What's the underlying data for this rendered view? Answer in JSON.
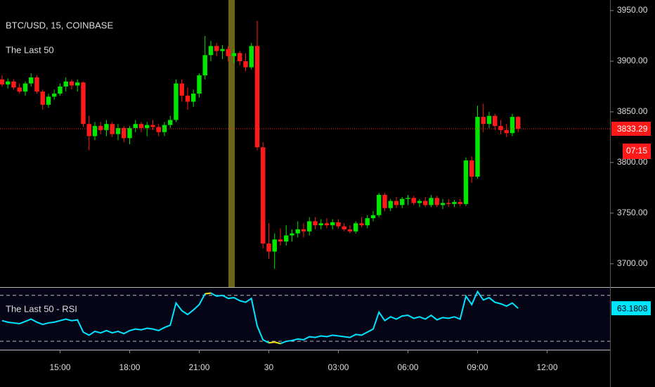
{
  "chart_data": {
    "type": "candlestick",
    "title": "BTC/USD, 15, COINBASE",
    "subtitle": "The Last 50",
    "countdown": "07:15",
    "up_color": "#00e600",
    "down_color": "#ff1a1a",
    "xlim": [
      -0.36,
      104.85
    ],
    "xticks": [
      {
        "value": 10,
        "label": "15:00"
      },
      {
        "value": 22,
        "label": "18:00"
      },
      {
        "value": 34,
        "label": "21:00"
      },
      {
        "value": 46,
        "label": "30"
      },
      {
        "value": 58,
        "label": "03:00"
      },
      {
        "value": 70,
        "label": "06:00"
      },
      {
        "value": 82,
        "label": "09:00"
      },
      {
        "value": 94,
        "label": "12:00"
      }
    ],
    "ylim": [
      3677,
      3960.4
    ],
    "yticks": [
      {
        "value": 3700,
        "label": "3700.00"
      },
      {
        "value": 3750,
        "label": "3750.00"
      },
      {
        "value": 3800,
        "label": "3800.00"
      },
      {
        "value": 3850,
        "label": "3850.00"
      },
      {
        "value": 3900,
        "label": "3900.00"
      },
      {
        "value": 3950,
        "label": "3950.00"
      }
    ],
    "candles": [
      [
        3882,
        3886,
        3875,
        3877
      ],
      [
        3877,
        3883,
        3873,
        3880
      ],
      [
        3880,
        3882,
        3872,
        3874
      ],
      [
        3874,
        3878,
        3868,
        3870
      ],
      [
        3870,
        3880,
        3866,
        3878
      ],
      [
        3878,
        3888,
        3875,
        3884
      ],
      [
        3884,
        3886,
        3868,
        3870
      ],
      [
        3870,
        3872,
        3852,
        3857
      ],
      [
        3857,
        3868,
        3854,
        3865
      ],
      [
        3865,
        3872,
        3862,
        3868
      ],
      [
        3868,
        3878,
        3866,
        3875
      ],
      [
        3875,
        3884,
        3870,
        3880
      ],
      [
        3880,
        3882,
        3872,
        3876
      ],
      [
        3876,
        3882,
        3870,
        3879
      ],
      [
        3879,
        3880,
        3835,
        3838
      ],
      [
        3838,
        3846,
        3812,
        3826
      ],
      [
        3826,
        3840,
        3822,
        3836
      ],
      [
        3836,
        3840,
        3828,
        3832
      ],
      [
        3832,
        3842,
        3826,
        3838
      ],
      [
        3838,
        3840,
        3825,
        3828
      ],
      [
        3828,
        3838,
        3822,
        3834
      ],
      [
        3834,
        3836,
        3820,
        3824
      ],
      [
        3824,
        3836,
        3818,
        3834
      ],
      [
        3834,
        3842,
        3830,
        3838
      ],
      [
        3838,
        3840,
        3830,
        3834
      ],
      [
        3834,
        3840,
        3826,
        3837
      ],
      [
        3837,
        3842,
        3832,
        3835
      ],
      [
        3835,
        3838,
        3826,
        3830
      ],
      [
        3830,
        3840,
        3826,
        3837
      ],
      [
        3837,
        3846,
        3834,
        3842
      ],
      [
        3842,
        3882,
        3840,
        3878
      ],
      [
        3878,
        3882,
        3860,
        3866
      ],
      [
        3866,
        3874,
        3852,
        3860
      ],
      [
        3860,
        3872,
        3855,
        3868
      ],
      [
        3868,
        3888,
        3864,
        3886
      ],
      [
        3886,
        3925,
        3882,
        3906
      ],
      [
        3906,
        3920,
        3900,
        3915
      ],
      [
        3915,
        3918,
        3905,
        3910
      ],
      [
        3910,
        3916,
        3902,
        3912
      ],
      [
        3912,
        3915,
        3900,
        3905
      ],
      [
        3905,
        3912,
        3898,
        3908
      ],
      [
        3908,
        3910,
        3896,
        3900
      ],
      [
        3900,
        3908,
        3890,
        3894
      ],
      [
        3894,
        3918,
        3892,
        3915
      ],
      [
        3915,
        3940,
        3812,
        3815
      ],
      [
        3815,
        3820,
        3715,
        3720
      ],
      [
        3720,
        3740,
        3705,
        3712
      ],
      [
        3712,
        3730,
        3695,
        3724
      ],
      [
        3724,
        3735,
        3718,
        3722
      ],
      [
        3722,
        3738,
        3718,
        3728
      ],
      [
        3728,
        3734,
        3722,
        3730
      ],
      [
        3730,
        3742,
        3726,
        3734
      ],
      [
        3734,
        3740,
        3726,
        3732
      ],
      [
        3732,
        3746,
        3728,
        3742
      ],
      [
        3742,
        3746,
        3734,
        3738
      ],
      [
        3738,
        3744,
        3734,
        3740
      ],
      [
        3740,
        3745,
        3735,
        3738
      ],
      [
        3738,
        3744,
        3734,
        3741
      ],
      [
        3741,
        3744,
        3735,
        3737
      ],
      [
        3737,
        3740,
        3732,
        3734
      ],
      [
        3734,
        3738,
        3730,
        3732
      ],
      [
        3732,
        3742,
        3730,
        3740
      ],
      [
        3740,
        3746,
        3736,
        3738
      ],
      [
        3738,
        3748,
        3735,
        3745
      ],
      [
        3745,
        3752,
        3742,
        3748
      ],
      [
        3748,
        3770,
        3746,
        3768
      ],
      [
        3768,
        3770,
        3752,
        3755
      ],
      [
        3755,
        3764,
        3752,
        3762
      ],
      [
        3762,
        3766,
        3755,
        3758
      ],
      [
        3758,
        3766,
        3755,
        3764
      ],
      [
        3764,
        3768,
        3758,
        3765
      ],
      [
        3765,
        3767,
        3758,
        3760
      ],
      [
        3760,
        3764,
        3756,
        3762
      ],
      [
        3762,
        3766,
        3756,
        3758
      ],
      [
        3758,
        3768,
        3756,
        3765
      ],
      [
        3765,
        3767,
        3756,
        3758
      ],
      [
        3758,
        3764,
        3754,
        3760
      ],
      [
        3760,
        3764,
        3756,
        3759
      ],
      [
        3759,
        3763,
        3756,
        3761
      ],
      [
        3761,
        3764,
        3757,
        3759
      ],
      [
        3759,
        3805,
        3757,
        3802
      ],
      [
        3802,
        3806,
        3780,
        3786
      ],
      [
        3786,
        3856,
        3784,
        3845
      ],
      [
        3845,
        3858,
        3830,
        3838
      ],
      [
        3838,
        3850,
        3834,
        3846
      ],
      [
        3846,
        3848,
        3832,
        3836
      ],
      [
        3836,
        3842,
        3828,
        3832
      ],
      [
        3832,
        3838,
        3825,
        3829
      ],
      [
        3829,
        3848,
        3826,
        3845
      ],
      [
        3845,
        3846,
        3830,
        3833.29
      ]
    ],
    "rsi": {
      "name": "The Last 50 - RSI",
      "color": "#00e5ff",
      "extreme_color": "#ffd700",
      "ylim": [
        9,
        89
      ],
      "bands": [
        80,
        20
      ],
      "values": [
        47,
        45,
        44,
        43,
        46,
        49,
        45,
        42,
        44,
        45,
        47,
        49,
        47,
        48,
        32,
        28,
        33,
        31,
        34,
        31,
        33,
        30,
        34,
        36,
        35,
        37,
        36,
        34,
        38,
        41,
        70,
        60,
        55,
        61,
        68,
        82,
        83,
        79,
        80,
        76,
        77,
        73,
        71,
        76,
        40,
        22,
        18,
        19,
        17,
        20,
        21,
        23,
        22,
        26,
        25,
        27,
        26,
        28,
        27,
        26,
        25,
        29,
        28,
        32,
        36,
        58,
        47,
        52,
        49,
        53,
        54,
        50,
        52,
        49,
        54,
        48,
        51,
        50,
        52,
        49,
        79,
        68,
        85,
        74,
        77,
        71,
        69,
        66,
        70,
        63.1808
      ]
    }
  }
}
